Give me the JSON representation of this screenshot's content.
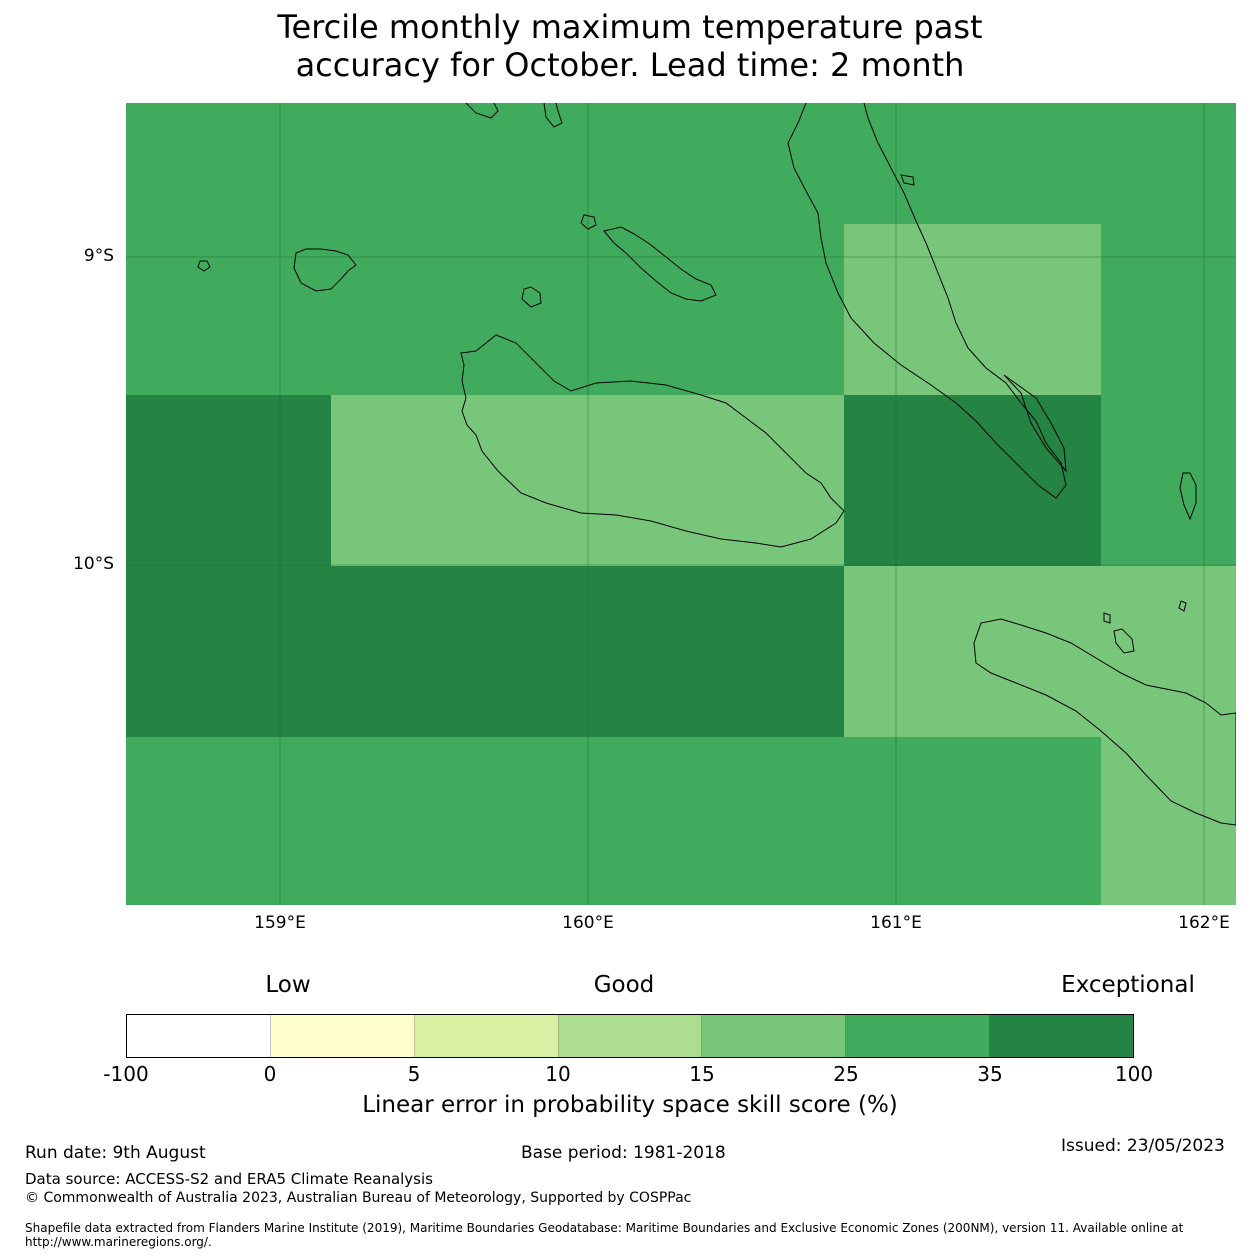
{
  "title": {
    "line1": "Tercile monthly maximum temperature past",
    "line2": "accuracy for October. Lead time: 2 month"
  },
  "map": {
    "lat_labels": [
      "9°S",
      "10°S"
    ],
    "lon_labels": [
      "159°E",
      "160°E",
      "161°E",
      "162°E"
    ],
    "ocean_color": "#41ab5d",
    "coast_color": "#000000",
    "grid_cells": [
      {
        "lon": [
          158.5,
          162.1
        ],
        "lat": [
          -8.4,
          -9.45
        ],
        "level": "25-35"
      },
      {
        "lon": [
          160.83,
          161.67
        ],
        "lat": [
          -8.9,
          -9.45
        ],
        "level": "15-25"
      },
      {
        "lon": [
          158.5,
          159.17
        ],
        "lat": [
          -9.45,
          -10.0
        ],
        "level": "35-100"
      },
      {
        "lon": [
          159.17,
          160.83
        ],
        "lat": [
          -9.45,
          -10.0
        ],
        "level": "15-25"
      },
      {
        "lon": [
          160.83,
          161.67
        ],
        "lat": [
          -9.45,
          -10.0
        ],
        "level": "35-100"
      },
      {
        "lon": [
          158.5,
          160.83
        ],
        "lat": [
          -10.0,
          -10.55
        ],
        "level": "35-100"
      },
      {
        "lon": [
          160.83,
          162.1
        ],
        "lat": [
          -10.0,
          -10.55
        ],
        "level": "15-25"
      },
      {
        "lon": [
          161.67,
          162.1
        ],
        "lat": [
          -10.55,
          -11.1
        ],
        "level": "15-25"
      }
    ]
  },
  "legend": {
    "category_labels": [
      "Low",
      "Good",
      "Exceptional"
    ],
    "ticks": [
      "-100",
      "0",
      "5",
      "10",
      "15",
      "25",
      "35",
      "100"
    ],
    "colors": [
      "#ffffff",
      "#ffffcc",
      "#d9f0a3",
      "#addd8e",
      "#78c679",
      "#41ab5d",
      "#238443"
    ],
    "title": "Linear error in probability space skill score (%)"
  },
  "footer": {
    "run_date": "Run date: 9th August",
    "base_period": "Base period: 1981-2018",
    "issued": "Issued: 23/05/2023",
    "data_source": "Data source: ACCESS-S2 and ERA5 Climate Reanalysis",
    "copyright": "© Commonwealth of Australia 2023, Australian Bureau of Meteorology, Supported by COSPPac",
    "shapefile": "Shapefile data extracted from Flanders Marine Institute (2019), Maritime Boundaries Geodatabase: Maritime Boundaries and Exclusive Economic Zones (200NM), version 11. Available online at http://www.marineregions.org/."
  }
}
